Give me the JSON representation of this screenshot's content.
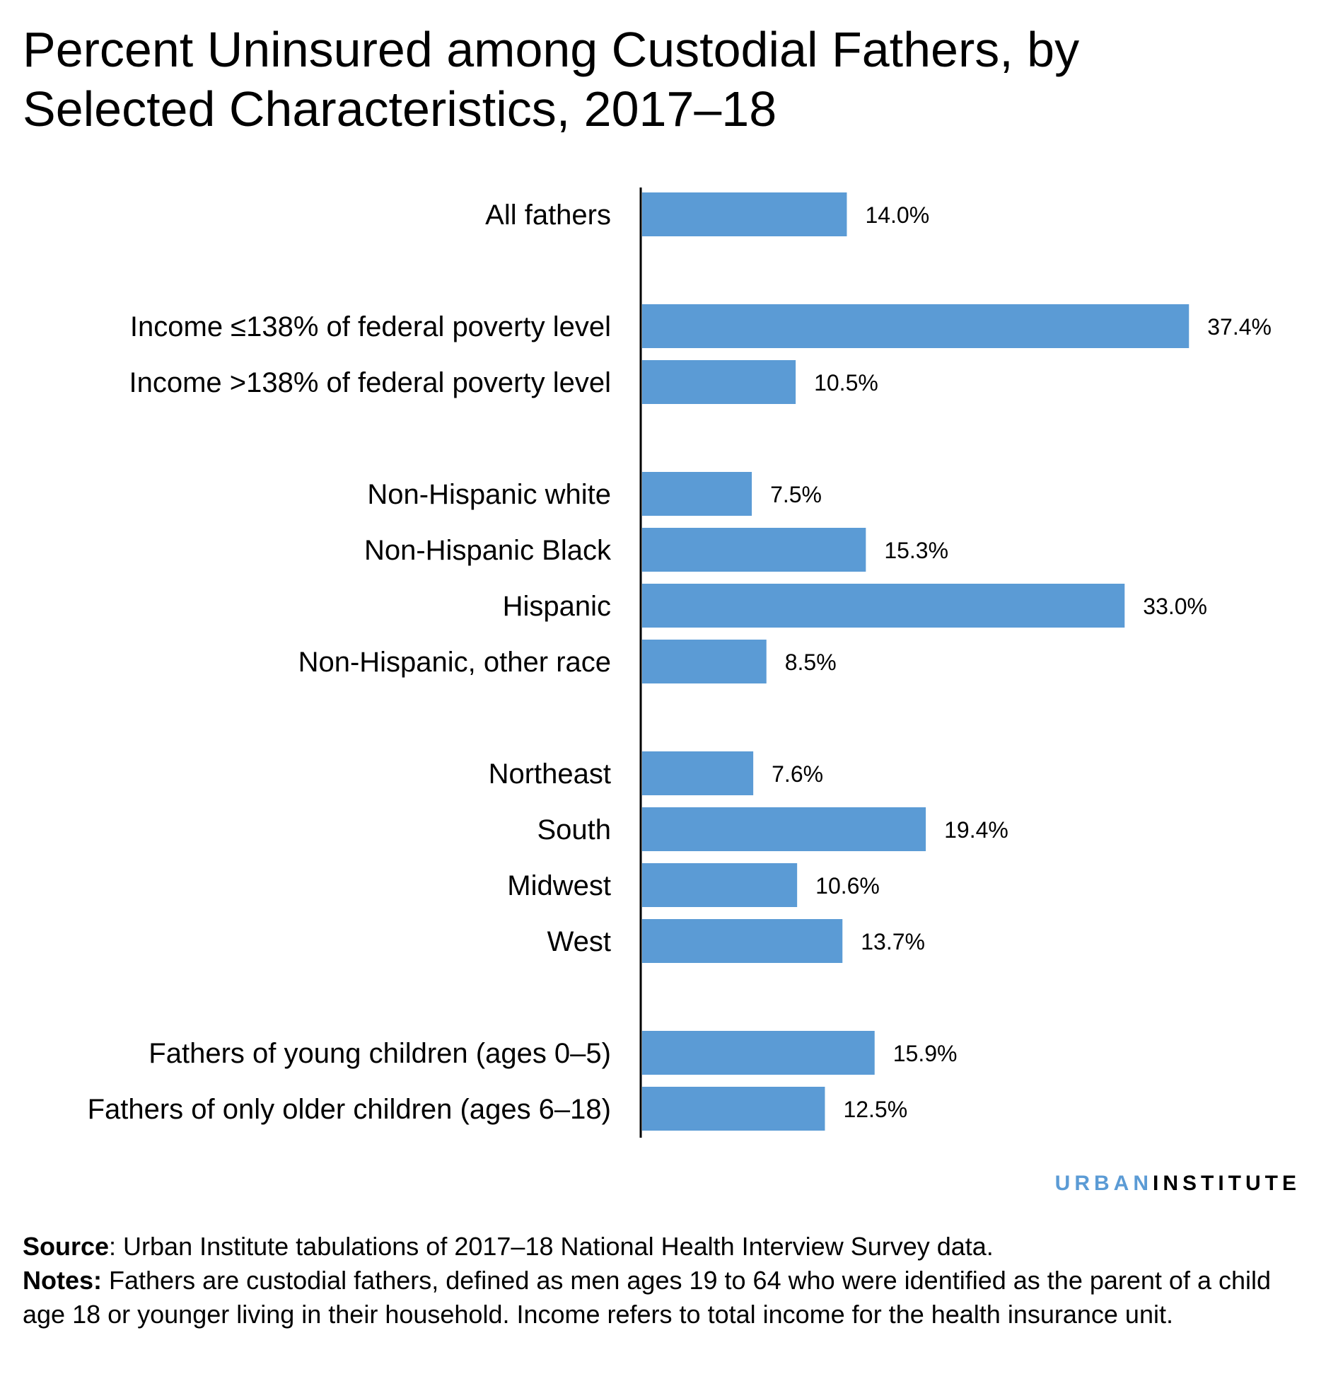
{
  "title": "Percent Uninsured among Custodial Fathers, by Selected Characteristics, 2017–18",
  "chart_data": {
    "type": "bar",
    "orientation": "horizontal",
    "title": "Percent Uninsured among Custodial Fathers, by Selected Characteristics, 2017–18",
    "xlabel": "",
    "ylabel": "",
    "xlim": [
      0,
      40
    ],
    "grid": false,
    "bar_color": "#5b9bd5",
    "groups": [
      {
        "rows": [
          {
            "label": "All fathers",
            "value": 14.0,
            "value_label": "14.0%"
          }
        ]
      },
      {
        "rows": [
          {
            "label": "Income ≤138% of federal poverty level",
            "value": 37.4,
            "value_label": "37.4%"
          },
          {
            "label": "Income >138% of federal poverty level",
            "value": 10.5,
            "value_label": "10.5%"
          }
        ]
      },
      {
        "rows": [
          {
            "label": "Non-Hispanic white",
            "value": 7.5,
            "value_label": "7.5%"
          },
          {
            "label": "Non-Hispanic Black",
            "value": 15.3,
            "value_label": "15.3%"
          },
          {
            "label": "Hispanic",
            "value": 33.0,
            "value_label": "33.0%"
          },
          {
            "label": "Non-Hispanic, other race",
            "value": 8.5,
            "value_label": "8.5%"
          }
        ]
      },
      {
        "rows": [
          {
            "label": "Northeast",
            "value": 7.6,
            "value_label": "7.6%"
          },
          {
            "label": "South",
            "value": 19.4,
            "value_label": "19.4%"
          },
          {
            "label": "Midwest",
            "value": 10.6,
            "value_label": "10.6%"
          },
          {
            "label": "West",
            "value": 13.7,
            "value_label": "13.7%"
          }
        ]
      },
      {
        "rows": [
          {
            "label": "Fathers of young children (ages 0–5)",
            "value": 15.9,
            "value_label": "15.9%"
          },
          {
            "label": "Fathers of only older children (ages 6–18)",
            "value": 12.5,
            "value_label": "12.5%"
          }
        ]
      }
    ]
  },
  "logo": {
    "part1": "URBAN",
    "part2": "INSTITUTE"
  },
  "footer": {
    "source_label": "Source",
    "source_text": ": Urban Institute tabulations of 2017–18 National Health Interview Survey data.",
    "notes_label": "Notes:",
    "notes_text": " Fathers are custodial fathers, defined as men ages 19 to 64 who were identified as the parent of a child age 18 or younger living in their household. Income refers to total income for the health insurance unit."
  }
}
